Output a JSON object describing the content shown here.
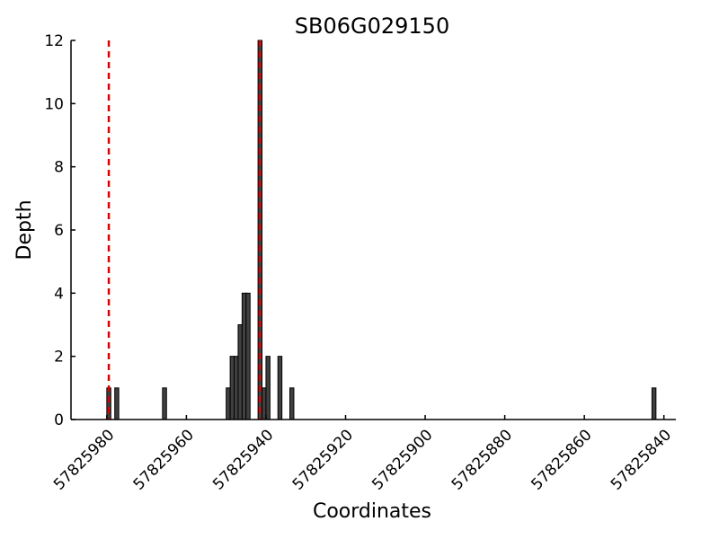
{
  "chart_data": {
    "type": "bar",
    "title": "SB06G029150",
    "xlabel": "Coordinates",
    "ylabel": "Depth",
    "x_axis_reversed": true,
    "xlim": [
      57825989,
      57825837
    ],
    "ylim": [
      0,
      12
    ],
    "grid": false,
    "x_ticks": [
      57825980,
      57825960,
      57825940,
      57825920,
      57825900,
      57825880,
      57825860,
      57825840
    ],
    "x_tick_labels": [
      "57825980",
      "57825960",
      "57825940",
      "57825920",
      "57825900",
      "57825880",
      "57825860",
      "57825840"
    ],
    "y_ticks": [
      0,
      2,
      4,
      6,
      8,
      10,
      12
    ],
    "y_tick_labels": [
      "0",
      "2",
      "4",
      "6",
      "8",
      "10",
      "12"
    ],
    "bar_color": "#404040",
    "series": [
      {
        "x": [
          57825980,
          57825978,
          57825966,
          57825950,
          57825949,
          57825948,
          57825947,
          57825946,
          57825945,
          57825944,
          57825942,
          57825941,
          57825940,
          57825937,
          57825934,
          57825843
        ],
        "values": [
          1,
          1,
          1,
          1,
          2,
          2,
          3,
          4,
          4,
          0,
          12,
          1,
          2,
          2,
          1,
          1
        ]
      }
    ],
    "reference_lines": [
      {
        "x": 57825980,
        "style": "dashed",
        "color": "#e00000"
      },
      {
        "x": 57825942,
        "style": "dashed",
        "color": "#e00000"
      }
    ]
  }
}
